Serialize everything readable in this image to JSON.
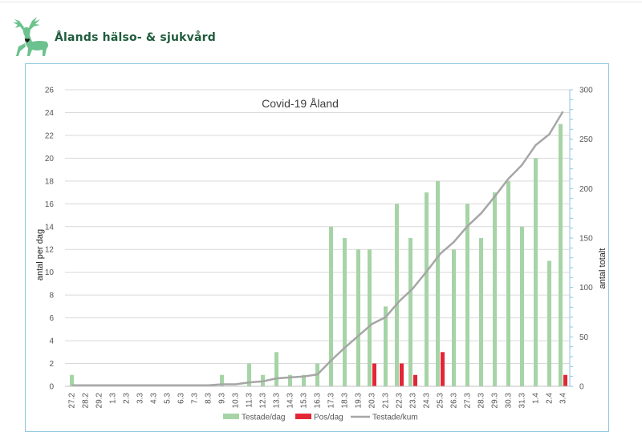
{
  "header": {
    "org_name": "Ålands hälso- & sjukvård",
    "logo_color": "#6cc28e"
  },
  "colors": {
    "tested": "#a6d4a6",
    "positive": "#e32636",
    "cumulative": "#a6a6a6",
    "grid": "#d9d9d9",
    "frame": "#8fc6df"
  },
  "chart_data": {
    "type": "bar",
    "title": "Covid-19 Åland",
    "ylabel_left": "antal per dag",
    "ylabel_right": "antal totalt",
    "ylim_left": [
      0,
      26
    ],
    "yticks_left": [
      0,
      2,
      4,
      6,
      8,
      10,
      12,
      14,
      16,
      18,
      20,
      22,
      24,
      26
    ],
    "ylim_right": [
      0,
      300
    ],
    "yticks_right": [
      0,
      50,
      100,
      150,
      200,
      250,
      300
    ],
    "grid": true,
    "legend_position": "bottom",
    "categories": [
      "27.2",
      "28.2",
      "29.2",
      "1.3",
      "2.3",
      "3.3",
      "4.3",
      "5.3",
      "6.3",
      "7.3",
      "8.3",
      "9.3",
      "10.3",
      "11.3",
      "12.3",
      "13.3",
      "14.3",
      "15.3",
      "16.3",
      "17.3",
      "18.3",
      "19.3",
      "20.3",
      "21.3",
      "22.3",
      "23.3",
      "24.3",
      "25.3",
      "26.3",
      "27.3",
      "28.3",
      "29.3",
      "30.3",
      "31.3",
      "1.4",
      "2.4",
      "3.4"
    ],
    "series": [
      {
        "name": "Testade/dag",
        "type": "bar",
        "axis": "left",
        "values": [
          1,
          0,
          0,
          0,
          0,
          0,
          0,
          0,
          0,
          0,
          0,
          1,
          0,
          2,
          1,
          3,
          1,
          1,
          2,
          14,
          13,
          12,
          12,
          7,
          16,
          13,
          17,
          18,
          12,
          16,
          13,
          17,
          18,
          14,
          20,
          11,
          23
        ]
      },
      {
        "name": "Pos/dag",
        "type": "bar",
        "axis": "left",
        "values": [
          0,
          0,
          0,
          0,
          0,
          0,
          0,
          0,
          0,
          0,
          0,
          0,
          0,
          0,
          0,
          0,
          0,
          0,
          0,
          0,
          0,
          0,
          2,
          0,
          2,
          1,
          0,
          3,
          0,
          0,
          0,
          0,
          0,
          0,
          0,
          0,
          1
        ]
      },
      {
        "name": "Testade/kum",
        "type": "line",
        "axis": "right",
        "values": [
          1,
          1,
          1,
          1,
          1,
          1,
          1,
          1,
          1,
          1,
          1,
          2,
          2,
          4,
          5,
          8,
          9,
          10,
          12,
          26,
          39,
          51,
          63,
          70,
          86,
          99,
          116,
          134,
          146,
          162,
          175,
          192,
          210,
          224,
          244,
          255,
          278
        ]
      }
    ]
  }
}
